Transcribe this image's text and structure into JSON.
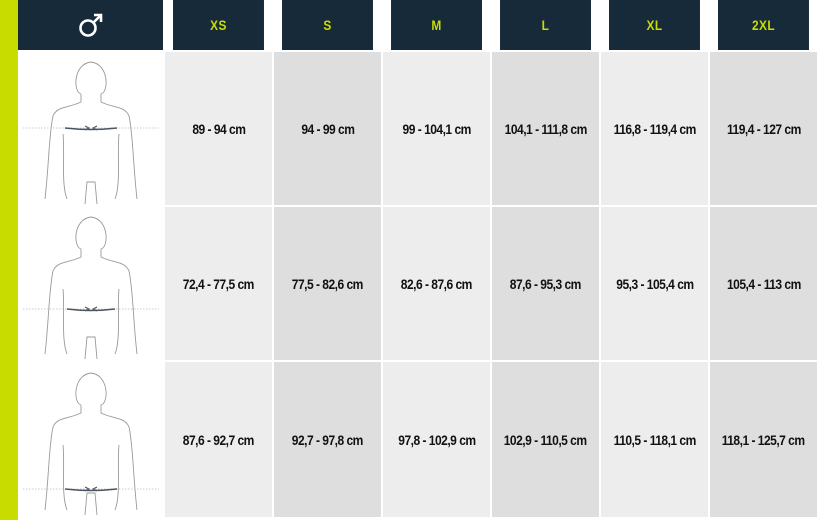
{
  "header": {
    "gender_icon": "male-symbol-icon",
    "sizes": [
      "XS",
      "S",
      "M",
      "L",
      "XL",
      "2XL"
    ]
  },
  "rows": [
    {
      "measure_icon": "chest-measurement-figure-icon",
      "values": [
        "89 - 94 cm",
        "94 - 99 cm",
        "99 - 104,1 cm",
        "104,1 - 111,8  cm",
        "116,8 - 119,4 cm",
        "119,4 - 127 cm"
      ]
    },
    {
      "measure_icon": "waist-measurement-figure-icon",
      "values": [
        "72,4 - 77,5 cm",
        "77,5 - 82,6 cm",
        "82,6 - 87,6 cm",
        "87,6 - 95,3 cm",
        "95,3 - 105,4 cm",
        "105,4 - 113 cm"
      ]
    },
    {
      "measure_icon": "hip-measurement-figure-icon",
      "values": [
        "87,6 - 92,7 cm",
        "92,7 - 97,8 cm",
        "97,8 - 102,9 cm",
        "102,9 - 110,5 cm",
        "110,5 - 118,1 cm",
        "118,1 -  125,7 cm"
      ]
    }
  ],
  "colors": {
    "accent": "#c8dc00",
    "header_bg": "#172a3a",
    "cell_light": "#ededed",
    "cell_dark": "#dedede"
  }
}
